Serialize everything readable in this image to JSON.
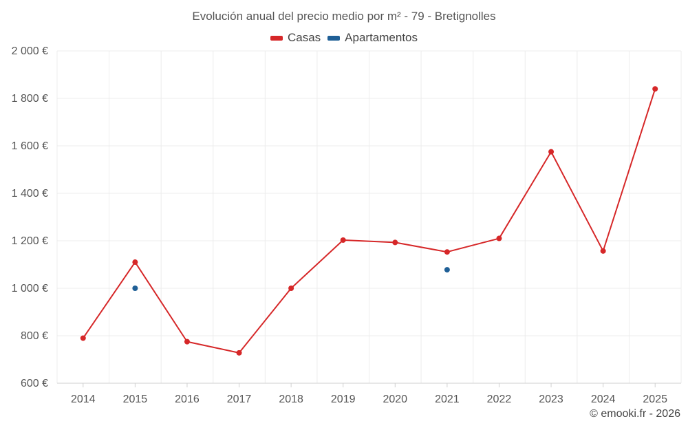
{
  "chart_data": {
    "type": "line",
    "title": "Evolución anual del precio medio por m² - 79 - Bretignolles",
    "categories": [
      "2014",
      "2015",
      "2016",
      "2017",
      "2018",
      "2019",
      "2020",
      "2021",
      "2022",
      "2023",
      "2024",
      "2025"
    ],
    "series": [
      {
        "name": "Casas",
        "color": "#d62728",
        "values": [
          790,
          1110,
          775,
          728,
          1000,
          1203,
          1193,
          1153,
          1210,
          1575,
          1157,
          1840
        ]
      },
      {
        "name": "Apartamentos",
        "color": "#1f5f96",
        "values": [
          null,
          1000,
          null,
          null,
          null,
          null,
          null,
          1078,
          null,
          null,
          null,
          null
        ]
      }
    ],
    "ylim": [
      600,
      2000
    ],
    "yticks": [
      600,
      800,
      1000,
      1200,
      1400,
      1600,
      1800,
      2000
    ],
    "ytick_labels": [
      "600 €",
      "800 €",
      "1 000 €",
      "1 200 €",
      "1 400 €",
      "1 600 €",
      "1 800 €",
      "2 000 €"
    ],
    "xlabel": "",
    "ylabel": "",
    "grid": true,
    "legend_position": "top-center"
  },
  "credit": "© emooki.fr - 2026"
}
